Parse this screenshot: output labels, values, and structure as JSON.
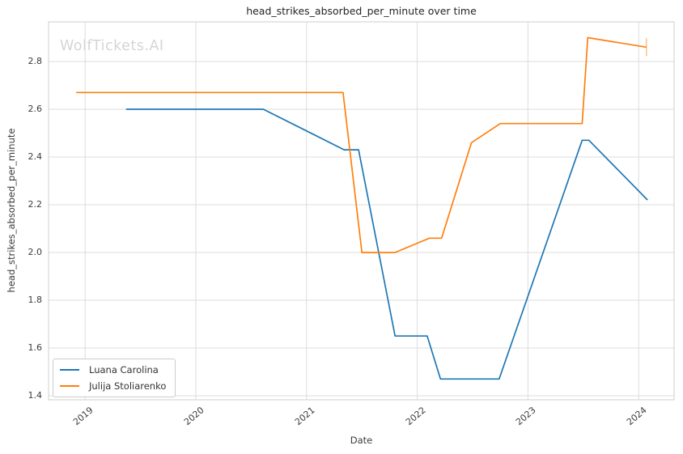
{
  "watermark": "WolfTickets.AI",
  "chart_data": {
    "type": "line",
    "title": "head_strikes_absorbed_per_minute over time",
    "xlabel": "Date",
    "ylabel": "head_strikes_absorbed_per_minute",
    "x_ticks": [
      2019,
      2020,
      2021,
      2022,
      2023,
      2024
    ],
    "y_ticks": [
      1.4,
      1.6,
      1.8,
      2.0,
      2.2,
      2.4,
      2.6,
      2.8
    ],
    "xlim": [
      2018.67,
      2024.32
    ],
    "ylim": [
      1.383,
      2.966
    ],
    "grid": true,
    "legend_position": "lower left",
    "series": [
      {
        "name": "Luana Carolina",
        "color": "#1f77b4",
        "points": [
          [
            2019.37,
            2.6
          ],
          [
            2020.61,
            2.6
          ],
          [
            2021.34,
            2.43
          ],
          [
            2021.47,
            2.43
          ],
          [
            2021.8,
            1.65
          ],
          [
            2022.09,
            1.65
          ],
          [
            2022.21,
            1.47
          ],
          [
            2022.74,
            1.47
          ],
          [
            2023.49,
            2.47
          ],
          [
            2023.55,
            2.47
          ],
          [
            2024.08,
            2.22
          ]
        ],
        "end_tick": false
      },
      {
        "name": "Julija Stoliarenko",
        "color": "#ff7f0e",
        "points": [
          [
            2018.92,
            2.67
          ],
          [
            2021.33,
            2.67
          ],
          [
            2021.5,
            2.0
          ],
          [
            2021.8,
            2.0
          ],
          [
            2022.11,
            2.06
          ],
          [
            2022.22,
            2.06
          ],
          [
            2022.49,
            2.46
          ],
          [
            2022.75,
            2.54
          ],
          [
            2023.49,
            2.54
          ],
          [
            2023.54,
            2.9
          ],
          [
            2024.07,
            2.86
          ]
        ],
        "end_tick": true
      }
    ],
    "colors": {
      "grid": "#dcdcdc",
      "spine": "#cfcfcf",
      "text": "#3b3b3b",
      "watermark": "#d5d5d5"
    }
  }
}
